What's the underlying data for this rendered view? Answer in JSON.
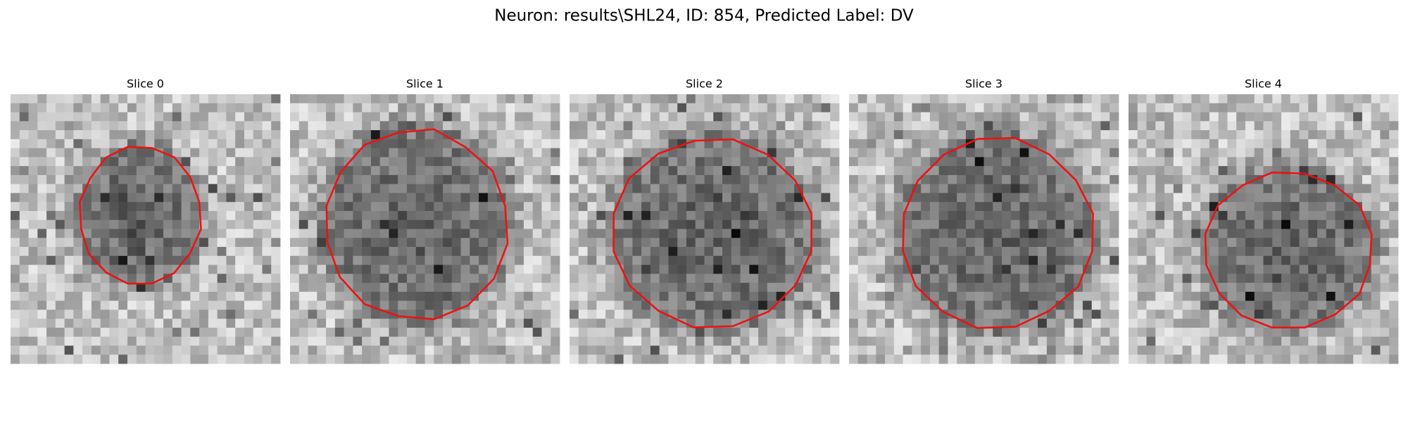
{
  "title": "Neuron: results\\SHL24, ID: 854, Predicted Label: DV",
  "panels": [
    {
      "title": "Slice 0"
    },
    {
      "title": "Slice 1"
    },
    {
      "title": "Slice 2"
    },
    {
      "title": "Slice 3"
    },
    {
      "title": "Slice 4"
    }
  ]
}
